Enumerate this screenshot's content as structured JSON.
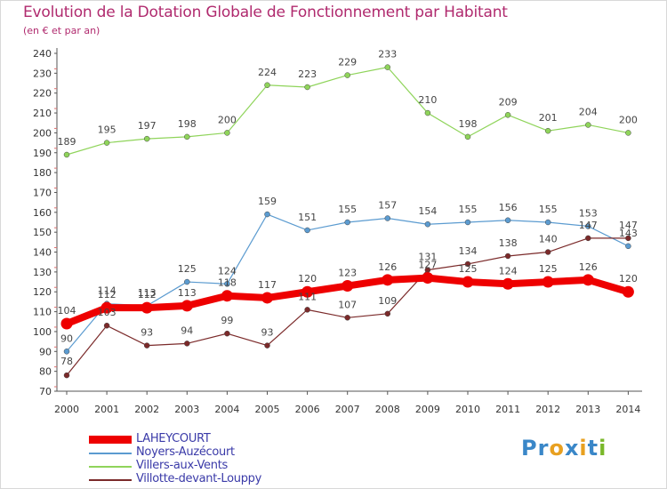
{
  "title": "Evolution de la Dotation Globale de Fonctionnement par Habitant",
  "subtitle": "(en € et par an)",
  "logo": {
    "text": "Proxiti",
    "letters": [
      "P",
      "r",
      "o",
      "x",
      "i",
      "t",
      "i"
    ],
    "colors": [
      "#3a87c8",
      "#3a87c8",
      "#e8a020",
      "#3a87c8",
      "#e8a020",
      "#3a87c8",
      "#7ab82a"
    ]
  },
  "chart_data": {
    "type": "line",
    "title": "Evolution de la Dotation Globale de Fonctionnement par Habitant",
    "xlabel": "",
    "ylabel": "(en € et par an)",
    "ylim": [
      70,
      240
    ],
    "yticks": [
      70,
      80,
      90,
      100,
      110,
      120,
      130,
      140,
      150,
      160,
      170,
      180,
      190,
      200,
      210,
      220,
      230,
      240
    ],
    "grid": false,
    "legend_position": "bottom-left",
    "categories": [
      "2000",
      "2001",
      "2002",
      "2003",
      "2004",
      "2005",
      "2006",
      "2007",
      "2008",
      "2009",
      "2010",
      "2011",
      "2012",
      "2013",
      "2014"
    ],
    "series": [
      {
        "name": "LAHEYCOURT",
        "color": "#ee0000",
        "values": [
          104,
          112,
          112,
          113,
          118,
          117,
          120,
          123,
          126,
          127,
          125,
          124,
          125,
          126,
          120
        ],
        "labels": [
          "104",
          "112",
          "112",
          "113",
          "118",
          "117",
          "120",
          "123",
          "126",
          "127",
          "125",
          "124",
          "125",
          "126",
          "120"
        ]
      },
      {
        "name": "Noyers-Auzécourt",
        "color": "#5b9bd0",
        "values": [
          90,
          114,
          113,
          125,
          124,
          159,
          151,
          155,
          157,
          154,
          155,
          156,
          155,
          153,
          143
        ],
        "labels": [
          "90",
          "114",
          "113",
          "125",
          "124",
          "159",
          "151",
          "155",
          "157",
          "154",
          "155",
          "156",
          "155",
          "153",
          "143"
        ]
      },
      {
        "name": "Villers-aux-Vents",
        "color": "#8fd45a",
        "values": [
          189,
          195,
          197,
          198,
          200,
          224,
          223,
          229,
          233,
          210,
          198,
          209,
          201,
          204,
          200
        ],
        "labels": [
          "189",
          "195",
          "197",
          "198",
          "200",
          "224",
          "223",
          "229",
          "233",
          "210",
          "198",
          "209",
          "201",
          "204",
          "200"
        ]
      },
      {
        "name": "Villotte-devant-Louppy",
        "color": "#7b2a2a",
        "values": [
          78,
          103,
          93,
          94,
          99,
          93,
          111,
          107,
          109,
          131,
          134,
          138,
          140,
          147,
          147
        ],
        "labels": [
          "78",
          "103",
          "93",
          "94",
          "99",
          "93",
          "111",
          "107",
          "109",
          "131",
          "134",
          "138",
          "140",
          "147",
          "147"
        ]
      }
    ]
  }
}
